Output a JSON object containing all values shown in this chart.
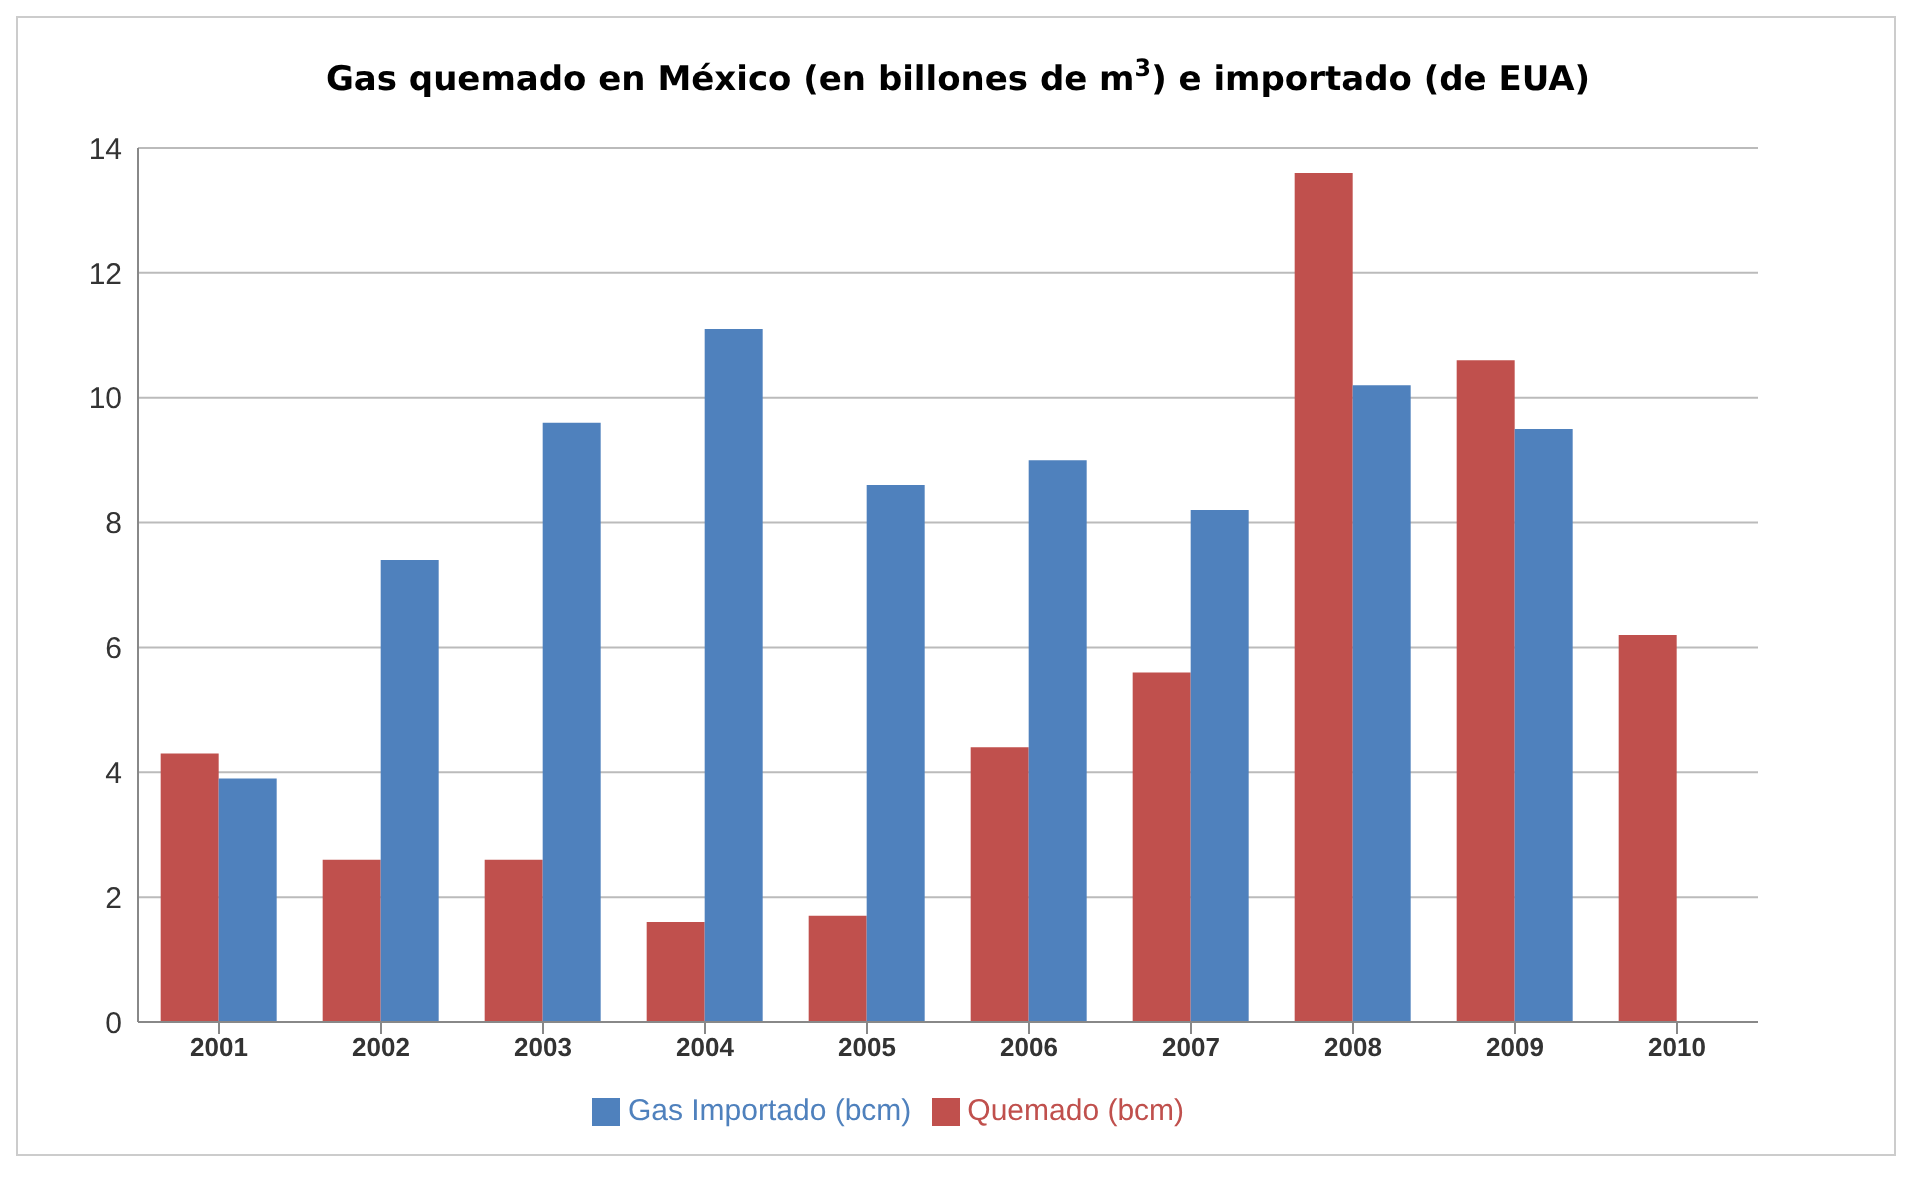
{
  "chart_data": {
    "type": "bar",
    "title": "Gas quemado en México (en billones de m$^{3}$) e importado (de EUA)",
    "categories": [
      "2001",
      "2002",
      "2003",
      "2004",
      "2005",
      "2006",
      "2007",
      "2008",
      "2009",
      "2010"
    ],
    "series": [
      {
        "name": "Quemado (bcm)",
        "color": "#c0504d",
        "values": [
          4.3,
          2.6,
          2.6,
          1.6,
          1.7,
          4.4,
          5.6,
          13.6,
          10.6,
          6.2
        ]
      },
      {
        "name": "Gas Importado (bcm)",
        "color": "#4f81bd",
        "values": [
          3.9,
          7.4,
          9.6,
          11.1,
          8.6,
          9.0,
          8.2,
          10.2,
          9.5,
          null
        ]
      }
    ],
    "ylim": [
      0,
      14
    ],
    "yticks": [
      0,
      2,
      4,
      6,
      8,
      10,
      12,
      14
    ],
    "grid": "y",
    "legend": "bottom"
  }
}
